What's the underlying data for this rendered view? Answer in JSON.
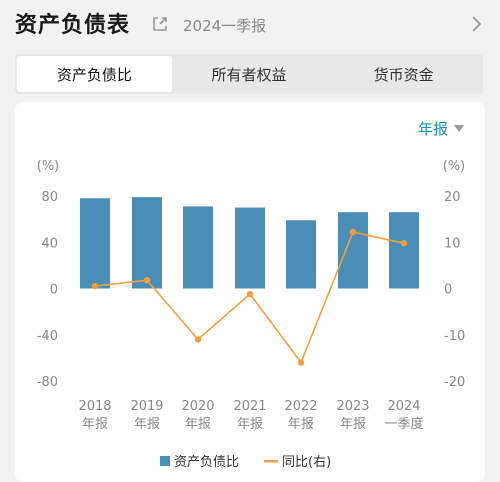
{
  "header": {
    "title": "资产负债表",
    "period": "2024一季报"
  },
  "tabs": [
    {
      "label": "资产负债比",
      "active": true
    },
    {
      "label": "所有者权益",
      "active": false
    },
    {
      "label": "货币资金",
      "active": false
    }
  ],
  "frequency": {
    "label": "年报"
  },
  "colors": {
    "bar": "#4a8db5",
    "line": "#f0a040",
    "accent": "#1a8fb0"
  },
  "chart_data": {
    "type": "bar+line",
    "categories": [
      [
        "2018",
        "年报"
      ],
      [
        "2019",
        "年报"
      ],
      [
        "2020",
        "年报"
      ],
      [
        "2021",
        "年报"
      ],
      [
        "2022",
        "年报"
      ],
      [
        "2023",
        "年报"
      ],
      [
        "2024",
        "一季度"
      ]
    ],
    "series": [
      {
        "name": "资产负债比",
        "type": "bar",
        "axis": "left",
        "values": [
          78,
          79,
          71,
          70,
          59,
          66,
          66
        ]
      },
      {
        "name": "同比(右)",
        "type": "line",
        "axis": "right",
        "values": [
          0.5,
          1.8,
          -11,
          -1.2,
          -16,
          12.2,
          9.8
        ]
      }
    ],
    "left_axis": {
      "unit": "(%)",
      "ticks": [
        80,
        40,
        0,
        -40,
        -80
      ],
      "range": [
        -80,
        80
      ]
    },
    "right_axis": {
      "unit": "(%)",
      "ticks": [
        20,
        10,
        0,
        -10,
        -20
      ],
      "range": [
        -20,
        20
      ]
    },
    "grid": false,
    "legend": "bottom-center"
  }
}
